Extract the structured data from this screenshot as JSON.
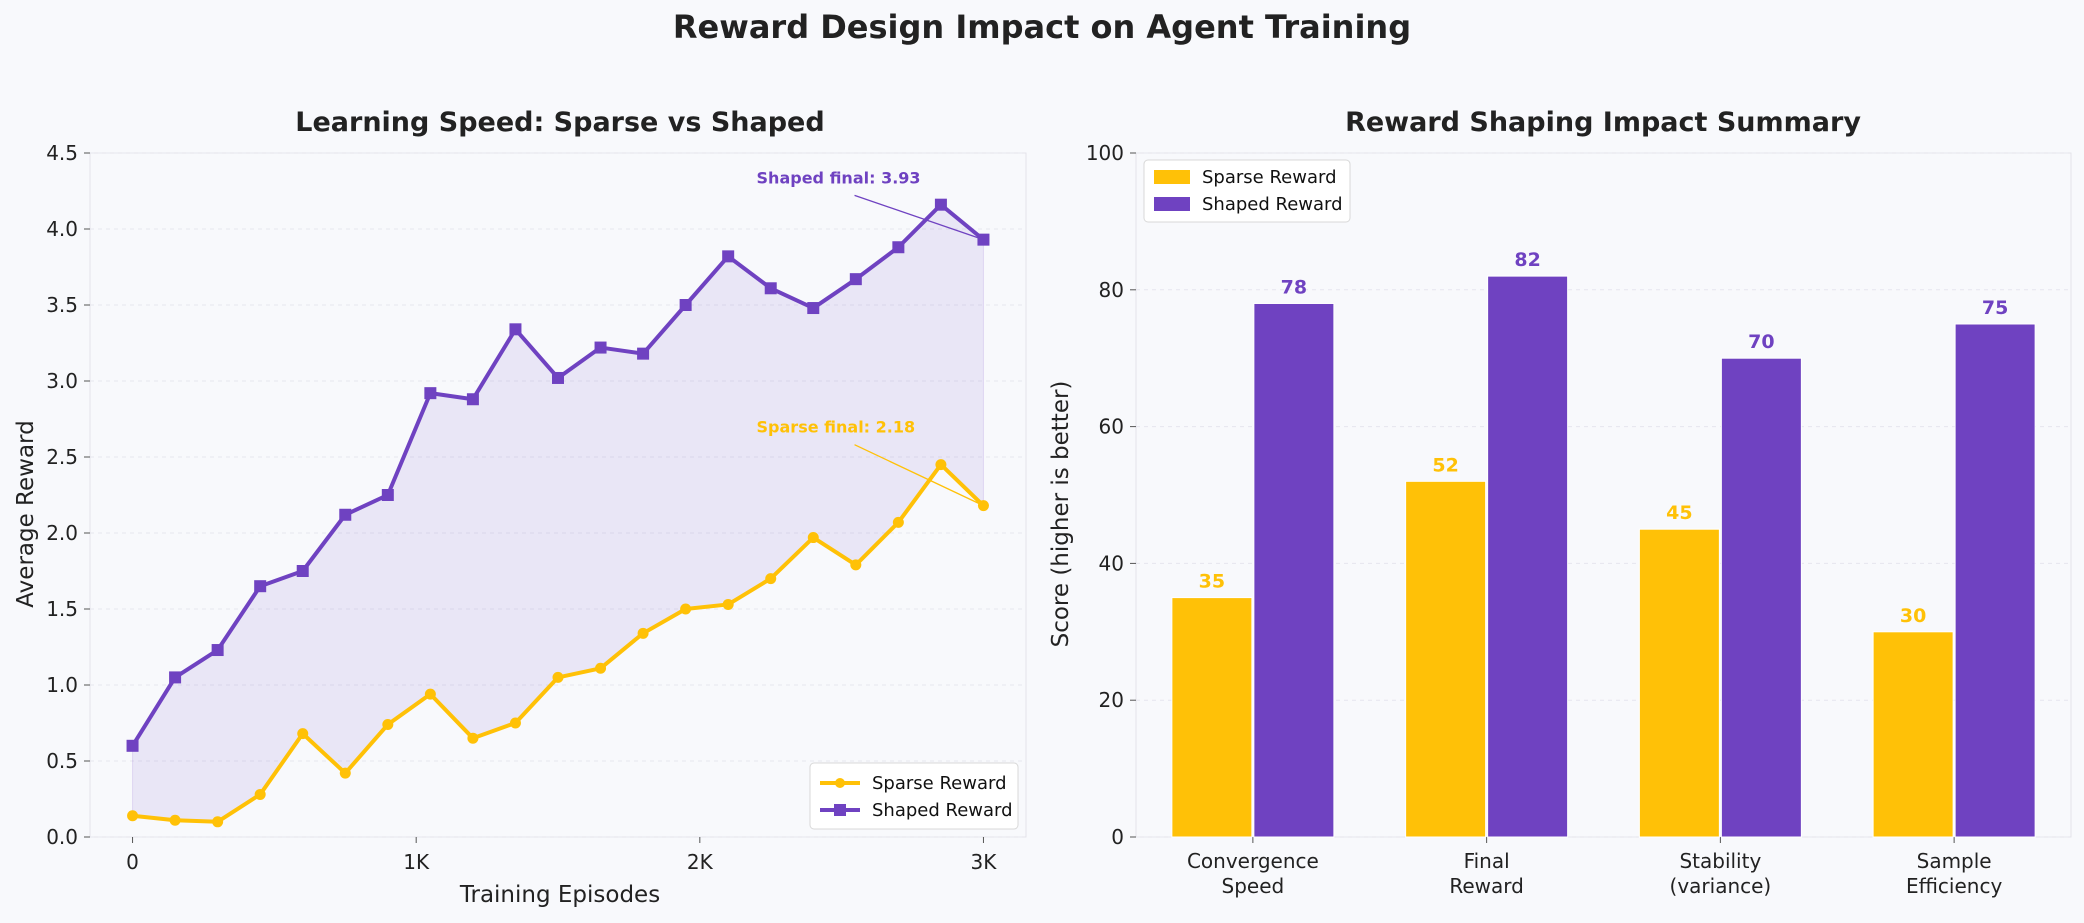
{
  "figure": {
    "suptitle": "Reward Design Impact on Agent Training",
    "colors": {
      "sparse": "#ffc107",
      "shaped": "#6f42c1",
      "background": "#f8f9fc",
      "text": "#222222"
    }
  },
  "chart_data": [
    {
      "type": "line",
      "title": "Learning Speed: Sparse vs Shaped",
      "xlabel": "Training Episodes",
      "ylabel": "Average Reward",
      "xlim": [
        -150,
        3150
      ],
      "ylim": [
        0,
        4.5
      ],
      "x_ticks": [
        0,
        1000,
        2000,
        3000
      ],
      "x_tick_labels": [
        "0",
        "1K",
        "2K",
        "3K"
      ],
      "y_ticks": [
        0,
        0.5,
        1.0,
        1.5,
        2.0,
        2.5,
        3.0,
        3.5,
        4.0,
        4.5
      ],
      "y_tick_labels": [
        "0.0",
        "0.5",
        "1.0",
        "1.5",
        "2.0",
        "2.5",
        "3.0",
        "3.5",
        "4.0",
        "4.5"
      ],
      "grid": true,
      "legend_position": "lower-right",
      "x": [
        0,
        150,
        300,
        450,
        600,
        750,
        900,
        1050,
        1200,
        1350,
        1500,
        1650,
        1800,
        1950,
        2100,
        2250,
        2400,
        2550,
        2700,
        2850,
        3000
      ],
      "series": [
        {
          "name": "Sparse Reward",
          "color": "#ffc107",
          "marker": "circle",
          "values": [
            0.14,
            0.11,
            0.1,
            0.28,
            0.68,
            0.42,
            0.74,
            0.94,
            0.65,
            0.75,
            1.05,
            1.11,
            1.34,
            1.5,
            1.53,
            1.7,
            1.97,
            1.79,
            2.07,
            2.45,
            2.18
          ]
        },
        {
          "name": "Shaped Reward",
          "color": "#6f42c1",
          "marker": "square",
          "values": [
            0.6,
            1.05,
            1.23,
            1.65,
            1.75,
            2.12,
            2.25,
            2.92,
            2.88,
            3.34,
            3.02,
            3.22,
            3.18,
            3.5,
            3.82,
            3.61,
            3.48,
            3.67,
            3.88,
            4.16,
            3.93
          ]
        }
      ],
      "fill_between": {
        "color": "#6f42c1",
        "opacity": 0.1
      },
      "annotations": [
        {
          "text": "Shaped final: 3.93",
          "color": "#6f42c1",
          "x": 3000,
          "y": 3.93,
          "text_x": 2200,
          "text_y": 4.3
        },
        {
          "text": "Sparse final: 2.18",
          "color": "#ffc107",
          "x": 3000,
          "y": 2.18,
          "text_x": 2200,
          "text_y": 2.66
        }
      ]
    },
    {
      "type": "bar",
      "title": "Reward Shaping Impact Summary",
      "xlabel": "",
      "ylabel": "Score (higher is better)",
      "ylim": [
        0,
        100
      ],
      "y_ticks": [
        0,
        20,
        40,
        60,
        80,
        100
      ],
      "y_tick_labels": [
        "0",
        "20",
        "40",
        "60",
        "80",
        "100"
      ],
      "grid": true,
      "legend_position": "upper-left",
      "categories": [
        [
          "Convergence",
          "Speed"
        ],
        [
          "Final",
          "Reward"
        ],
        [
          "Stability",
          "(variance)"
        ],
        [
          "Sample",
          "Efficiency"
        ]
      ],
      "series": [
        {
          "name": "Sparse Reward",
          "color": "#ffc107",
          "values": [
            35,
            52,
            45,
            30
          ]
        },
        {
          "name": "Shaped Reward",
          "color": "#6f42c1",
          "values": [
            78,
            82,
            70,
            75
          ]
        }
      ]
    }
  ]
}
